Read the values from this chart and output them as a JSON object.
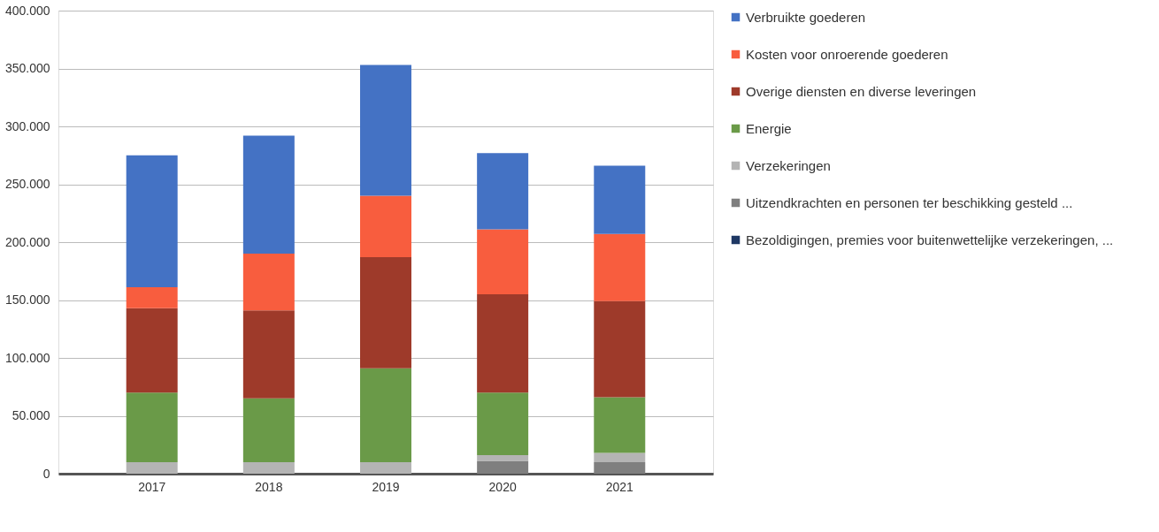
{
  "chart_data": {
    "type": "bar",
    "stacked": true,
    "categories": [
      "2017",
      "2018",
      "2019",
      "2020",
      "2021"
    ],
    "series": [
      {
        "name": "Bezoldigingen, premies voor buitenwettelijke verzekeringen, ...",
        "color": "#1f3864",
        "values": [
          0,
          0,
          0,
          0,
          0
        ]
      },
      {
        "name": "Uitzendkrachten en personen ter beschikking gesteld ...",
        "color": "#7f7f7f",
        "values": [
          0,
          0,
          0,
          11000,
          10000
        ]
      },
      {
        "name": "Verzekeringen",
        "color": "#b4b4b4",
        "values": [
          10000,
          10000,
          10000,
          5000,
          8000
        ]
      },
      {
        "name": "Energie",
        "color": "#6a9a48",
        "values": [
          60000,
          55000,
          81000,
          54000,
          48000
        ]
      },
      {
        "name": "Overige diensten en diverse leveringen",
        "color": "#9e3a2a",
        "values": [
          73000,
          76000,
          96000,
          85000,
          83000
        ]
      },
      {
        "name": "Kosten voor onroerende goederen",
        "color": "#f85d3e",
        "values": [
          18000,
          49000,
          53000,
          56000,
          58000
        ]
      },
      {
        "name": "Verbruikte goederen",
        "color": "#4472c4",
        "values": [
          114000,
          102000,
          113000,
          66000,
          59000
        ]
      }
    ],
    "ylim": [
      0,
      400000
    ],
    "yticks": [
      {
        "value": 0,
        "label": "0"
      },
      {
        "value": 50000,
        "label": "50.000"
      },
      {
        "value": 100000,
        "label": "100.000"
      },
      {
        "value": 150000,
        "label": "150.000"
      },
      {
        "value": 200000,
        "label": "200.000"
      },
      {
        "value": 250000,
        "label": "250.000"
      },
      {
        "value": 300000,
        "label": "300.000"
      },
      {
        "value": 350000,
        "label": "350.000"
      },
      {
        "value": 400000,
        "label": "400.000"
      }
    ],
    "grid": "y",
    "legend": "right"
  }
}
